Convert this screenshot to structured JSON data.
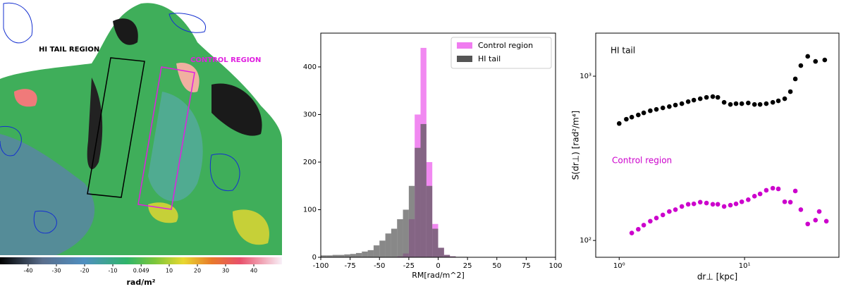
{
  "chart_data": [
    {
      "type": "map",
      "annotations": [
        "HI TAIL REGION",
        "CONTROL REGION"
      ],
      "colorbar": {
        "label": "rad/m²",
        "lim": [
          -50,
          50
        ],
        "ticks": [
          -40,
          -30,
          -20,
          -10,
          0.049,
          10,
          20,
          30,
          40
        ]
      }
    },
    {
      "type": "histogram",
      "xlabel": "RM[rad/m^2]",
      "bins": [
        -100,
        -95,
        -90,
        -85,
        -80,
        -75,
        -70,
        -65,
        -60,
        -55,
        -50,
        -45,
        -40,
        -35,
        -30,
        -25,
        -20,
        -15,
        -10,
        -5,
        0,
        5,
        10,
        15,
        20,
        25,
        30,
        35,
        40,
        45,
        50,
        55,
        60,
        65,
        70,
        75,
        80,
        85,
        90,
        95,
        100
      ],
      "series": [
        {
          "name": "Control region",
          "color": "#f07cf0",
          "values": [
            0,
            0,
            0,
            0,
            0,
            0,
            0,
            0,
            0,
            0,
            0,
            0,
            0,
            2,
            8,
            80,
            300,
            440,
            200,
            70,
            20,
            5,
            2,
            0,
            0,
            0,
            0,
            0,
            0,
            0,
            0,
            0,
            0,
            0,
            0,
            0,
            0,
            0,
            0,
            0
          ]
        },
        {
          "name": "HI tail",
          "color": "#555555",
          "values": [
            4,
            4,
            5,
            5,
            6,
            7,
            9,
            12,
            15,
            25,
            35,
            50,
            60,
            80,
            100,
            150,
            230,
            280,
            150,
            60,
            20,
            5,
            2,
            1,
            1,
            0,
            0,
            0,
            0,
            0,
            0,
            0,
            0,
            0,
            0,
            0,
            0,
            0,
            0,
            0
          ]
        }
      ],
      "xlim": [
        -100,
        100
      ],
      "xticks": [
        -100,
        -75,
        -50,
        -25,
        0,
        25,
        50,
        75,
        100
      ],
      "ylim": [
        0,
        471
      ],
      "yticks": [
        0,
        100,
        200,
        300,
        400
      ],
      "legend": "upper right"
    },
    {
      "type": "scatter",
      "xlabel": "dr⊥ [kpc]",
      "ylabel": "S(dr⊥) [rad²/m⁴]",
      "annotations": [
        "HI tail",
        "Control region"
      ],
      "log": true,
      "series": [
        {
          "name": "HI tail",
          "color": "#000000",
          "x": [
            1.0,
            1.14,
            1.26,
            1.42,
            1.57,
            1.77,
            1.98,
            2.23,
            2.51,
            2.81,
            3.16,
            3.55,
            3.94,
            4.43,
            4.97,
            5.58,
            6.12,
            6.87,
            7.71,
            8.55,
            9.5,
            10.7,
            12.0,
            13.3,
            14.9,
            16.8,
            18.6,
            20.9,
            23.2,
            25.4,
            28.1,
            31.9,
            36.8,
            43.6
          ],
          "values": [
            515,
            547,
            563,
            581,
            598,
            616,
            628,
            641,
            653,
            667,
            680,
            700,
            715,
            729,
            743,
            751,
            743,
            693,
            673,
            680,
            680,
            687,
            673,
            673,
            680,
            693,
            708,
            729,
            805,
            962,
            1160,
            1320,
            1230,
            1255
          ]
        },
        {
          "name": "Control region",
          "color": "#cc00cc",
          "x": [
            1.26,
            1.42,
            1.57,
            1.77,
            1.98,
            2.23,
            2.51,
            2.81,
            3.16,
            3.55,
            3.94,
            4.43,
            4.97,
            5.58,
            6.12,
            6.87,
            7.71,
            8.55,
            9.5,
            10.7,
            12.0,
            13.3,
            14.9,
            16.8,
            18.6,
            20.9,
            23.2,
            25.4,
            28.1,
            31.9,
            36.8,
            39.4,
            44.9
          ],
          "values": [
            111,
            117,
            124,
            131,
            137,
            143,
            150,
            154,
            161,
            166,
            167,
            171,
            169,
            166,
            166,
            161,
            164,
            167,
            172,
            177,
            186,
            192,
            202,
            208,
            206,
            172,
            171,
            200,
            154,
            126,
            133,
            150,
            131
          ]
        }
      ],
      "xlim": [
        0.65,
        56.6
      ],
      "xticks": [
        {
          "value": 1,
          "label": "10⁰"
        },
        {
          "value": 10,
          "label": "10¹"
        }
      ],
      "ylim": [
        79,
        1828
      ],
      "yticks": [
        {
          "value": 100,
          "label": "10²"
        },
        {
          "value": 1000,
          "label": "10³"
        }
      ]
    }
  ]
}
